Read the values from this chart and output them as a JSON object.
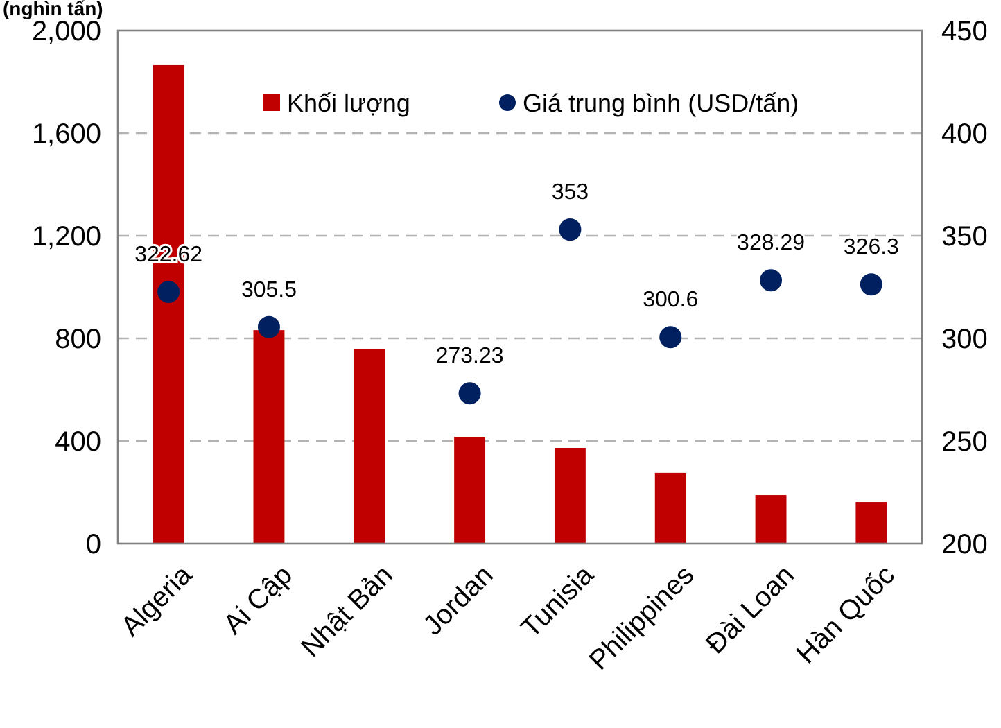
{
  "chart_data": {
    "type": "bar",
    "ylabel": "(nghìn tấn)",
    "categories": [
      "Algeria",
      "Ai Cập",
      "Nhật Bản",
      "Jordan",
      "Tunisia",
      "Philippines",
      "Đài Loan",
      "Hàn Quốc"
    ],
    "series": [
      {
        "name": "Khối lượng",
        "color": "#c00000",
        "values": [
          1865,
          832,
          757,
          416,
          373,
          276,
          189,
          162
        ]
      },
      {
        "name": "Giá trung bình (USD/tấn)",
        "type": "scatter",
        "axis": "y2",
        "color": "#002060",
        "values": [
          322.62,
          305.5,
          null,
          273.23,
          353,
          300.6,
          328.29,
          326.3
        ],
        "value_labels": [
          "322.62",
          "305.5",
          null,
          "273.23",
          "353",
          "300.6",
          "328.29",
          "326.3"
        ]
      }
    ],
    "ylim": [
      0,
      2000
    ],
    "yticks": [
      {
        "value": 0,
        "label": "0"
      },
      {
        "value": 400,
        "label": "400"
      },
      {
        "value": 800,
        "label": "800"
      },
      {
        "value": 1200,
        "label": "1,200"
      },
      {
        "value": 1600,
        "label": "1,600"
      },
      {
        "value": 2000,
        "label": "2,000"
      }
    ],
    "y2lim": [
      200,
      450
    ],
    "y2ticks": [
      200,
      250,
      300,
      350,
      400,
      450
    ],
    "grid": "y",
    "legend": "top",
    "marker": "circle"
  }
}
